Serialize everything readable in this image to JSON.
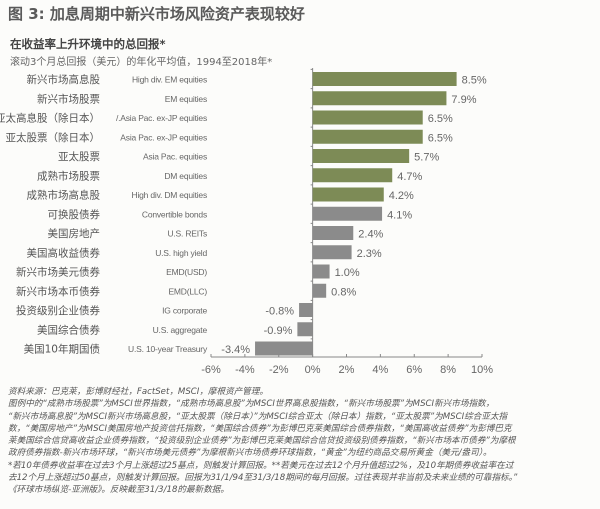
{
  "title": "图 3: 加息周期中新兴市场风险资产表现较好",
  "subtitle": "在收益率上升环境中的总回报*",
  "subtitle2": "滚动3个月总回报（美元）的年化平均值，1994至2018年*",
  "colors": {
    "equity": "#7d8b56",
    "other": "#8b8b8b",
    "axis": "#888888"
  },
  "chart_data": {
    "type": "bar",
    "orientation": "horizontal",
    "title": "在收益率上升环境中的总回报*",
    "categories_cn": [
      "新兴市场高息股",
      "新兴市场股票",
      "亚太高息股（除日本）",
      "亚太股票（除日本）",
      "亚太股票",
      "成熟市场股票",
      "成熟市场高息股",
      "可换股债券",
      "美国房地产",
      "美国高收益债券",
      "新兴市场美元债券",
      "新兴市场本币债券",
      "投资级别企业债券",
      "美国综合债券",
      "美国10年期国债"
    ],
    "categories_en": [
      "High div. EM equities",
      "EM equities",
      "/.Asia Pac. ex-JP equities",
      "Asia Pac. ex-JP equities",
      "Asia Pac. equities",
      "DM equities",
      "High div. DM equities",
      "Convertible bonds",
      "U.S. REITs",
      "U.S. high yield",
      "EMD(USD)",
      "EMD(LLC)",
      "IG corporate",
      "U.S. aggregate",
      "U.S. 10-year Treasury"
    ],
    "values": [
      8.5,
      7.9,
      6.5,
      6.5,
      5.7,
      4.7,
      4.2,
      4.1,
      2.4,
      2.3,
      1.0,
      0.8,
      -0.8,
      -0.9,
      -3.4
    ],
    "labels": [
      "8.5%",
      "7.9%",
      "6.5%",
      "6.5%",
      "5.7%",
      "4.7%",
      "4.2%",
      "4.1%",
      "2.4%",
      "2.3%",
      "1.0%",
      "0.8%",
      "-0.8%",
      "-0.9%",
      "-3.4%"
    ],
    "series_group": [
      "equity",
      "equity",
      "equity",
      "equity",
      "equity",
      "equity",
      "equity",
      "other",
      "other",
      "other",
      "other",
      "other",
      "other",
      "other",
      "other"
    ],
    "xlim": [
      -6,
      10
    ],
    "xticks": [
      -6,
      -4,
      -2,
      0,
      2,
      4,
      6,
      8,
      10
    ],
    "xtick_labels": [
      "-6%",
      "-4%",
      "-2%",
      "0%",
      "2%",
      "4%",
      "6%",
      "8%",
      "10%"
    ],
    "grid": false
  },
  "notes": [
    "资料来源：巴克莱，彭博财经社，FactSet，MSCI，摩根资产管理。",
    "图例中的“成熟市场股票”为MSCI世界指数，“成熟市场高息股”为MSCI世界高息股指数，“新兴市场股票”为MSCI新兴市场指数，",
    "“新兴市场高息股”为MSCI新兴市场高息股，“亚太股票（除日本）”为MSCI综合亚太（除日本）指数，“亚太股票”为MSCI综合亚太指",
    "数，“美国房地产”为MSCI美国房地产投资信托指数，“美国综合债券”为彭博巴克莱美国综合债券指数，“美国高收益债券”为彭博巴克",
    "莱美国综合信贷高收益企业债券指数，“投资级别企业债券”为彭博巴克莱美国综合信贷投资级别债券指数，“新兴市场本币债券”为摩根",
    "政府债券指数-新兴市场环球，“新兴市场美元债券”为摩根新兴市场债券环球指数，“黄金”为纽约商品交易所黄金（美元/盎司）。",
    "*若10年债券收益率在过去3个月上涨超过25基点，则触发计算回报。**若美元在过去12个月升值超过2%，及10年期债券收益率在过",
    "去12个月上涨超过50基点，则触发计算回报。回报为31/1/94至31/3/18期间的每月回报。过往表现并非当前及未来业绩的可靠指标。”",
    "《环球市场纵览-亚洲版》。反映截至31/3/18的最新数据。"
  ]
}
